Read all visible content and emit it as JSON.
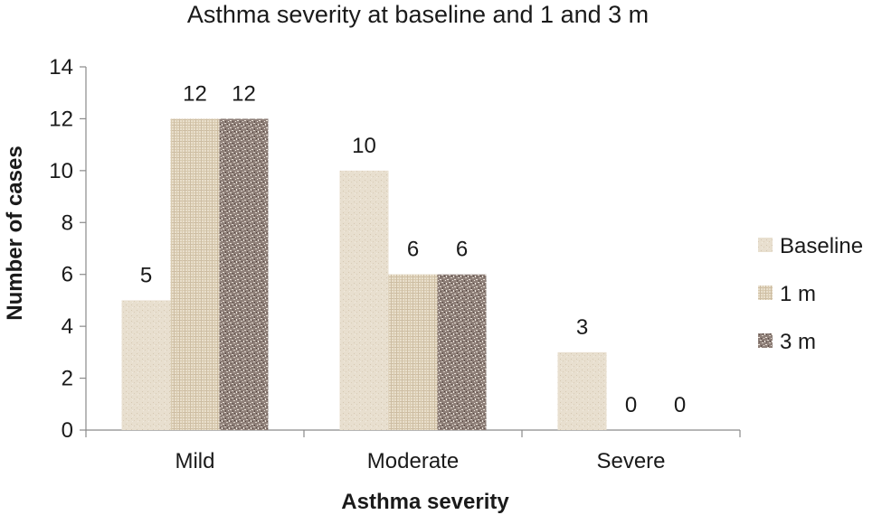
{
  "chart_data": {
    "type": "bar",
    "title": "Asthma severity at baseline and 1 and 3 m",
    "xlabel": "Asthma severity",
    "ylabel": "Number of cases",
    "categories": [
      "Mild",
      "Moderate",
      "Severe"
    ],
    "series": [
      {
        "name": "Baseline",
        "values": [
          5,
          10,
          3
        ],
        "color": "#e6dccb"
      },
      {
        "name": "1 m",
        "values": [
          12,
          6,
          0
        ],
        "color": "#ddd0b8"
      },
      {
        "name": "3 m",
        "values": [
          12,
          6,
          0
        ],
        "color": "#8a7a72"
      }
    ],
    "ylim": [
      0,
      14
    ],
    "yticks": [
      0,
      2,
      4,
      6,
      8,
      10,
      12,
      14
    ],
    "grid": false,
    "legend_position": "right",
    "data_labels": true
  }
}
